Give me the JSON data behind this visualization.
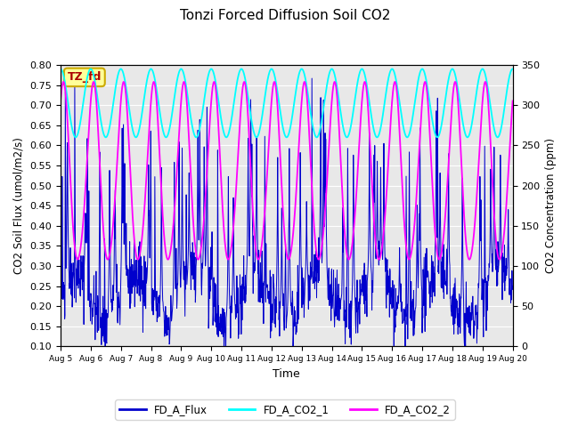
{
  "title": "Tonzi Forced Diffusion Soil CO2",
  "xlabel": "Time",
  "ylabel_left": "CO2 Soil Flux (umol/m2/s)",
  "ylabel_right": "CO2 Concentration (ppm)",
  "ylim_left": [
    0.1,
    0.8
  ],
  "ylim_right": [
    0,
    350
  ],
  "yticks_left": [
    0.1,
    0.15,
    0.2,
    0.25,
    0.3,
    0.35,
    0.4,
    0.45,
    0.5,
    0.55,
    0.6,
    0.65,
    0.7,
    0.75,
    0.8
  ],
  "yticks_right": [
    0,
    50,
    100,
    150,
    200,
    250,
    300,
    350
  ],
  "color_flux": "#0000CC",
  "color_co2_1": "#00FFFF",
  "color_co2_2": "#FF00FF",
  "legend_label_flux": "FD_A_Flux",
  "legend_label_co2_1": "FD_A_CO2_1",
  "legend_label_co2_2": "FD_A_CO2_2",
  "annotation_text": "TZ_fd",
  "annotation_bg": "#FFFF99",
  "annotation_border": "#CCAA00",
  "annotation_text_color": "#AA0000",
  "bg_color": "#E8E8E8",
  "n_days": 15,
  "seed": 42
}
